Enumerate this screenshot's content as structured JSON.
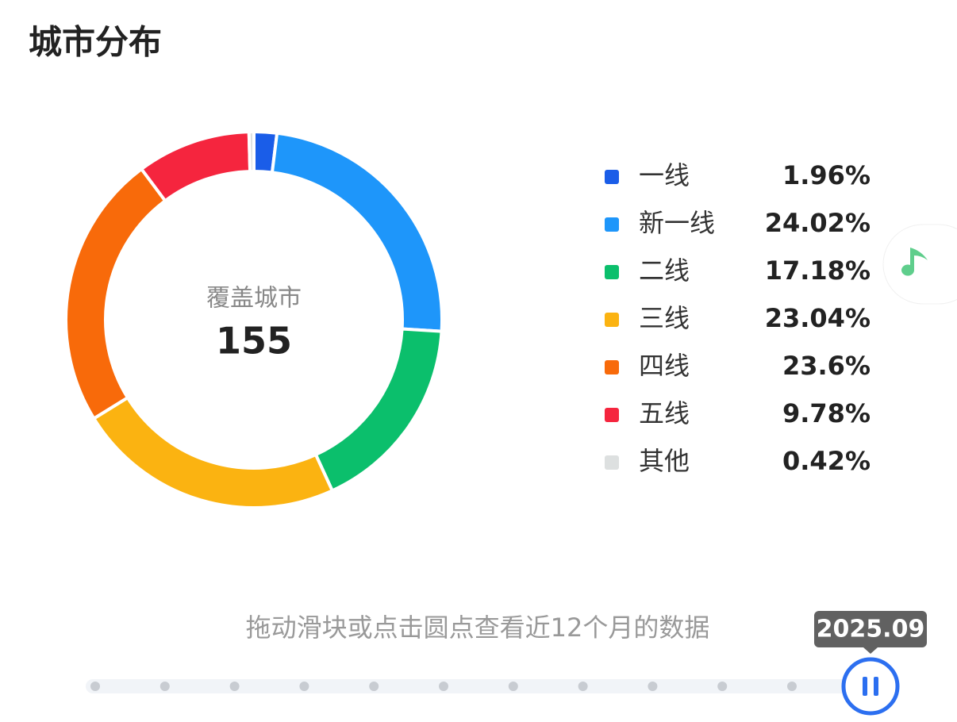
{
  "chart_data": {
    "type": "pie",
    "title": "城市分布",
    "center_label": "覆盖城市",
    "center_value": 155,
    "categories": [
      "一线",
      "新一线",
      "二线",
      "三线",
      "四线",
      "五线",
      "其他"
    ],
    "values": [
      1.96,
      24.02,
      17.18,
      23.04,
      23.6,
      9.78,
      0.42
    ],
    "value_labels": [
      "1.96%",
      "24.02%",
      "17.18%",
      "23.04%",
      "23.6%",
      "9.78%",
      "0.42%"
    ],
    "colors": [
      "#1a5de8",
      "#1e96fa",
      "#0bbf6c",
      "#fbb311",
      "#f86a0a",
      "#f5253e",
      "#dde0e0"
    ]
  },
  "slider": {
    "hint": "拖动滑块或点击圆点查看近12个月的数据",
    "current": "2025.09"
  }
}
